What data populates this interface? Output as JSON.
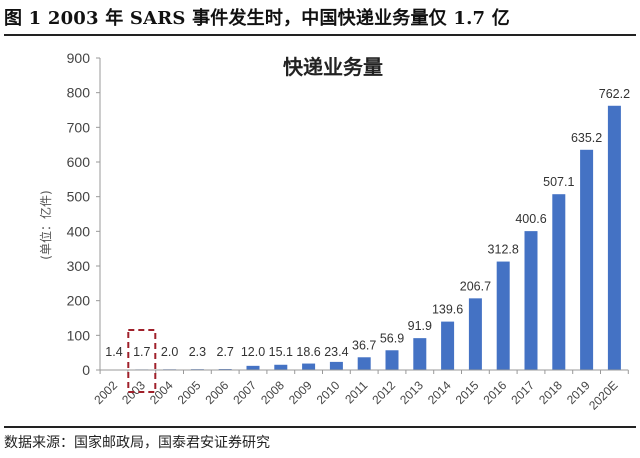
{
  "figure": {
    "title": "图 1 2003 年 SARS 事件发生时，中国快递业务量仅 1.7 亿",
    "source": "数据来源：国家邮政局，国泰君安证券研究"
  },
  "chart_data": {
    "type": "bar",
    "title": "快递业务量",
    "xlabel": "",
    "ylabel": "(单位：亿件)",
    "ylim": [
      0,
      900
    ],
    "yticks": [
      0,
      100,
      200,
      300,
      400,
      500,
      600,
      700,
      800,
      900
    ],
    "grid": false,
    "legend": null,
    "categories": [
      "2002",
      "2003",
      "2004",
      "2005",
      "2006",
      "2007",
      "2008",
      "2009",
      "2010",
      "2011",
      "2012",
      "2013",
      "2014",
      "2015",
      "2016",
      "2017",
      "2018",
      "2019",
      "2020E"
    ],
    "values": [
      1.4,
      1.7,
      2.0,
      2.3,
      2.7,
      12.0,
      15.1,
      18.6,
      23.4,
      36.7,
      56.9,
      91.9,
      139.6,
      206.7,
      312.8,
      400.6,
      507.1,
      635.2,
      762.2
    ],
    "data_labels": [
      "1.4",
      "1.7",
      "2.0",
      "2.3",
      "2.7",
      "12.0",
      "15.1",
      "18.6",
      "23.4",
      "36.7",
      "56.9",
      "91.9",
      "139.6",
      "206.7",
      "312.8",
      "400.6",
      "507.1",
      "635.2",
      "762.2"
    ],
    "bar_color": "#4472C4",
    "annotations": [
      {
        "type": "dashed-box",
        "target": "2003",
        "color": "#A0202A"
      }
    ]
  }
}
